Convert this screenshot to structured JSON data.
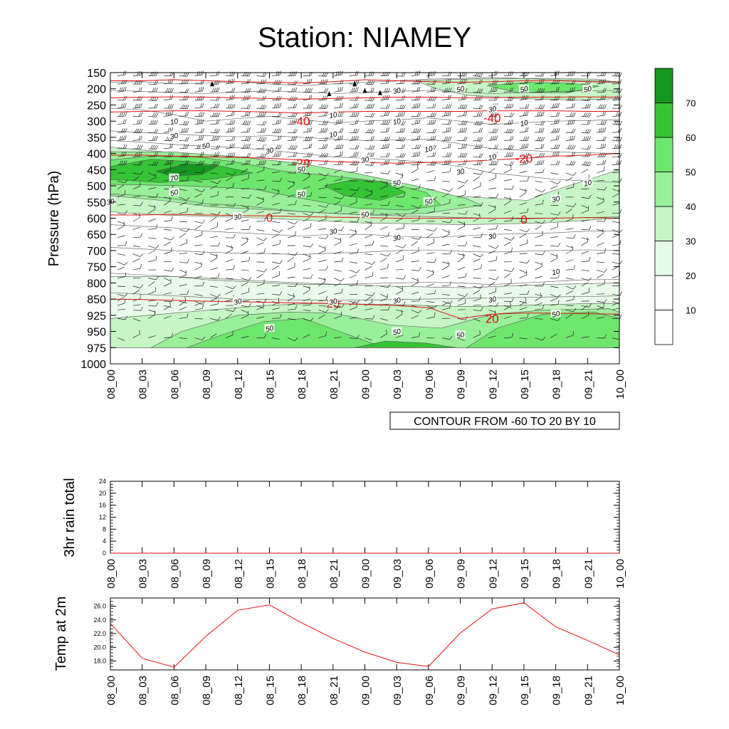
{
  "title": "Station: NIAMEY",
  "time_labels": [
    "08_00",
    "08_03",
    "08_06",
    "08_09",
    "08_12",
    "08_15",
    "08_18",
    "08_21",
    "09_00",
    "09_03",
    "09_06",
    "09_09",
    "09_12",
    "09_15",
    "09_18",
    "09_21",
    "10_00"
  ],
  "cross_section": {
    "ylabel": "Pressure (hPa)",
    "pressure_ticks": [
      "150",
      "200",
      "250",
      "300",
      "350",
      "400",
      "450",
      "500",
      "550",
      "600",
      "650",
      "700",
      "750",
      "800",
      "850",
      "925",
      "950",
      "975",
      "1000"
    ],
    "contour_info": "CONTOUR FROM -60 TO 20 BY 10",
    "legend_labels": [
      "10",
      "20",
      "30",
      "40",
      "50",
      "60",
      "70"
    ],
    "legend_colors": [
      "#ffffff",
      "#ffffff",
      "#e8fae8",
      "#c6f5c6",
      "#9aef9a",
      "#6ee66e",
      "#35c435",
      "#15961f"
    ],
    "temp_contours": [
      {
        "label": "-40",
        "pressure": [
          175,
          175,
          172,
          175,
          178,
          180,
          182,
          178,
          172,
          175,
          178,
          180,
          178,
          175,
          175,
          178,
          180
        ]
      },
      {
        "label": "-40",
        "pressure": [
          228,
          226,
          225,
          226,
          228,
          230,
          232,
          230,
          228,
          226,
          226,
          228,
          228,
          226,
          226,
          225,
          226
        ]
      },
      {
        "label": "-40",
        "pressure": [
          272,
          270,
          268,
          268,
          270,
          272,
          275,
          272,
          270,
          270,
          270,
          270,
          268,
          268,
          268,
          270,
          270
        ]
      },
      {
        "label": "-20",
        "pressure": [
          405,
          405,
          408,
          410,
          412,
          415,
          420,
          425,
          428,
          430,
          428,
          425,
          420,
          415,
          408,
          405,
          400
        ]
      },
      {
        "label": "0",
        "pressure": [
          590,
          590,
          588,
          590,
          592,
          593,
          595,
          597,
          598,
          600,
          600,
          600,
          600,
          600,
          600,
          598,
          600
        ]
      },
      {
        "label": "20",
        "pressure": [
          850,
          852,
          856,
          860,
          862,
          865,
          868,
          870,
          875,
          880,
          890,
          930,
          920,
          915,
          915,
          918,
          920
        ]
      }
    ],
    "temp_labels": [
      {
        "text": "-40",
        "time": "08_18",
        "pressure": 300
      },
      {
        "text": "-40",
        "time": "09_12",
        "pressure": 290
      },
      {
        "text": "-20",
        "time": "08_18",
        "pressure": 430
      },
      {
        "text": "-20",
        "time": "09_15",
        "pressure": 415
      },
      {
        "text": "0",
        "time": "08_15",
        "pressure": 598
      },
      {
        "text": "0",
        "time": "09_15",
        "pressure": 603
      },
      {
        "text": "20",
        "time": "08_21",
        "pressure": 870
      },
      {
        "text": "20",
        "time": "09_12",
        "pressure": 930
      }
    ],
    "green_regions": [
      {
        "level": "30",
        "poly": [
          [
            0,
            380
          ],
          [
            14,
            400
          ],
          [
            24,
            420
          ],
          [
            37,
            440
          ],
          [
            48,
            470
          ],
          [
            55,
            500
          ],
          [
            66,
            530
          ],
          [
            82,
            545
          ],
          [
            86,
            520
          ],
          [
            96,
            470
          ],
          [
            100,
            450
          ],
          [
            100,
            600
          ],
          [
            85,
            615
          ],
          [
            70,
            620
          ],
          [
            50,
            615
          ],
          [
            30,
            600
          ],
          [
            10,
            590
          ],
          [
            0,
            580
          ]
        ]
      },
      {
        "level": "40",
        "poly": [
          [
            0,
            395
          ],
          [
            12,
            395
          ],
          [
            25,
            410
          ],
          [
            37,
            430
          ],
          [
            48,
            460
          ],
          [
            60,
            500
          ],
          [
            70,
            540
          ],
          [
            73,
            560
          ],
          [
            62,
            585
          ],
          [
            50,
            590
          ],
          [
            38,
            580
          ],
          [
            20,
            565
          ],
          [
            10,
            545
          ],
          [
            0,
            530
          ]
        ]
      },
      {
        "level": "50",
        "poly": [
          [
            0,
            420
          ],
          [
            8,
            408
          ],
          [
            18,
            412
          ],
          [
            26,
            430
          ],
          [
            34,
            455
          ],
          [
            44,
            470
          ],
          [
            54,
            488
          ],
          [
            62,
            520
          ],
          [
            65,
            560
          ],
          [
            58,
            575
          ],
          [
            48,
            568
          ],
          [
            38,
            540
          ],
          [
            28,
            510
          ],
          [
            15,
            500
          ],
          [
            0,
            495
          ]
        ]
      },
      {
        "level": "60",
        "poly": [
          [
            0,
            440
          ],
          [
            8,
            418
          ],
          [
            16,
            425
          ],
          [
            22,
            440
          ],
          [
            28,
            460
          ],
          [
            20,
            480
          ],
          [
            10,
            490
          ],
          [
            0,
            480
          ]
        ]
      },
      {
        "level": "60",
        "poly": [
          [
            42,
            500
          ],
          [
            48,
            480
          ],
          [
            54,
            490
          ],
          [
            58,
            520
          ],
          [
            53,
            545
          ],
          [
            46,
            530
          ]
        ]
      },
      {
        "level": "70",
        "poly": [
          [
            9,
            455
          ],
          [
            15,
            432
          ],
          [
            21,
            440
          ],
          [
            18,
            465
          ],
          [
            12,
            470
          ]
        ]
      },
      {
        "level": "30",
        "poly": [
          [
            60,
            175
          ],
          [
            70,
            170
          ],
          [
            82,
            168
          ],
          [
            95,
            170
          ],
          [
            100,
            180
          ],
          [
            100,
            230
          ],
          [
            92,
            235
          ],
          [
            80,
            230
          ],
          [
            70,
            220
          ],
          [
            64,
            200
          ]
        ]
      },
      {
        "level": "50",
        "poly": [
          [
            74,
            190
          ],
          [
            82,
            180
          ],
          [
            90,
            182
          ],
          [
            96,
            192
          ],
          [
            90,
            212
          ],
          [
            80,
            212
          ]
        ]
      },
      {
        "level": "20",
        "poly": [
          [
            0,
            780
          ],
          [
            12,
            780
          ],
          [
            25,
            790
          ],
          [
            37,
            800
          ],
          [
            55,
            810
          ],
          [
            70,
            815
          ],
          [
            85,
            805
          ],
          [
            100,
            800
          ],
          [
            100,
            975
          ],
          [
            0,
            975
          ]
        ]
      },
      {
        "level": "30",
        "poly": [
          [
            0,
            930
          ],
          [
            10,
            920
          ],
          [
            20,
            900
          ],
          [
            30,
            880
          ],
          [
            40,
            870
          ],
          [
            55,
            875
          ],
          [
            70,
            885
          ],
          [
            80,
            880
          ],
          [
            95,
            870
          ],
          [
            100,
            870
          ],
          [
            100,
            975
          ],
          [
            0,
            975
          ]
        ]
      },
      {
        "level": "40",
        "poly": [
          [
            8,
            975
          ],
          [
            14,
            950
          ],
          [
            25,
            925
          ],
          [
            35,
            910
          ],
          [
            44,
            915
          ],
          [
            55,
            940
          ],
          [
            65,
            945
          ],
          [
            75,
            920
          ],
          [
            86,
            900
          ],
          [
            98,
            895
          ],
          [
            100,
            910
          ],
          [
            100,
            975
          ]
        ]
      },
      {
        "level": "50",
        "poly": [
          [
            15,
            975
          ],
          [
            22,
            955
          ],
          [
            30,
            935
          ],
          [
            38,
            930
          ],
          [
            45,
            950
          ],
          [
            52,
            970
          ],
          [
            60,
            975
          ]
        ]
      },
      {
        "level": "50",
        "poly": [
          [
            70,
            975
          ],
          [
            76,
            945
          ],
          [
            85,
            920
          ],
          [
            95,
            910
          ],
          [
            100,
            930
          ],
          [
            100,
            975
          ]
        ]
      },
      {
        "level": "60",
        "poly": [
          [
            48,
            975
          ],
          [
            54,
            965
          ],
          [
            62,
            968
          ],
          [
            68,
            975
          ]
        ]
      }
    ],
    "contour_value_labels": [
      {
        "text": "10",
        "time": "08_06",
        "pressure": 300
      },
      {
        "text": "10",
        "time": "08_21",
        "pressure": 280
      },
      {
        "text": "10",
        "time": "08_21",
        "pressure": 340
      },
      {
        "text": "10",
        "time": "09_03",
        "pressure": 300
      },
      {
        "text": "10",
        "time": "09_06",
        "pressure": 385
      },
      {
        "text": "10",
        "time": "09_15",
        "pressure": 305
      },
      {
        "text": "10",
        "time": "09_21",
        "pressure": 490
      },
      {
        "text": "10",
        "time": "09_18",
        "pressure": 765
      },
      {
        "text": "10",
        "time": "09_12",
        "pressure": 410
      },
      {
        "text": "30",
        "time": "08_06",
        "pressure": 345
      },
      {
        "text": "30",
        "time": "08_15",
        "pressure": 390
      },
      {
        "text": "30",
        "time": "09_00",
        "pressure": 418
      },
      {
        "text": "30",
        "time": "09_09",
        "pressure": 455
      },
      {
        "text": "30",
        "time": "09_18",
        "pressure": 540
      },
      {
        "text": "30",
        "time": "08_00",
        "pressure": 548
      },
      {
        "text": "30",
        "time": "08_12",
        "pressure": 595
      },
      {
        "text": "30",
        "time": "08_21",
        "pressure": 640
      },
      {
        "text": "30",
        "time": "09_03",
        "pressure": 660
      },
      {
        "text": "30",
        "time": "09_12",
        "pressure": 655
      },
      {
        "text": "30",
        "time": "08_12",
        "pressure": 860
      },
      {
        "text": "30",
        "time": "08_21",
        "pressure": 860
      },
      {
        "text": "30",
        "time": "09_03",
        "pressure": 855
      },
      {
        "text": "30",
        "time": "09_12",
        "pressure": 850
      },
      {
        "text": "30",
        "time": "09_03",
        "pressure": 205
      },
      {
        "text": "30",
        "time": "09_12",
        "pressure": 262
      },
      {
        "text": "50",
        "time": "08_09",
        "pressure": 375
      },
      {
        "text": "50",
        "time": "08_18",
        "pressure": 448
      },
      {
        "text": "50",
        "time": "09_03",
        "pressure": 490
      },
      {
        "text": "50",
        "time": "08_06",
        "pressure": 520
      },
      {
        "text": "50",
        "time": "08_18",
        "pressure": 525
      },
      {
        "text": "50",
        "time": "09_00",
        "pressure": 588
      },
      {
        "text": "50",
        "time": "09_06",
        "pressure": 548
      },
      {
        "text": "50",
        "time": "09_09",
        "pressure": 200
      },
      {
        "text": "50",
        "time": "09_15",
        "pressure": 200
      },
      {
        "text": "50",
        "time": "09_21",
        "pressure": 200
      },
      {
        "text": "50",
        "time": "08_15",
        "pressure": 945
      },
      {
        "text": "50",
        "time": "09_03",
        "pressure": 950
      },
      {
        "text": "50",
        "time": "09_09",
        "pressure": 955
      },
      {
        "text": "50",
        "time": "09_18",
        "pressure": 918
      },
      {
        "text": "70",
        "time": "08_06",
        "pressure": 475
      }
    ]
  },
  "rain_panel": {
    "ylabel": "3hr rain total",
    "ticks": [
      "0",
      "4",
      "8",
      "12",
      "16",
      "20",
      "24"
    ],
    "ylim": [
      0,
      24
    ]
  },
  "temp_panel": {
    "ylabel": "Temp at 2m",
    "ticks": [
      "18.0",
      "20.0",
      "22.0",
      "24.0",
      "26.0"
    ],
    "ylim": [
      16.7,
      27.2
    ]
  },
  "chart_data": [
    {
      "type": "line",
      "title": "",
      "ylabel": "3hr rain total",
      "x": [
        "08_00",
        "08_03",
        "08_06",
        "08_09",
        "08_12",
        "08_15",
        "08_18",
        "08_21",
        "09_00",
        "09_03",
        "09_06",
        "09_09",
        "09_12",
        "09_15",
        "09_18",
        "09_21",
        "10_00"
      ],
      "series": [
        {
          "values": [
            0,
            0,
            0,
            0,
            0,
            0,
            0,
            0,
            0,
            0,
            0,
            0,
            0,
            0,
            0,
            0,
            0
          ]
        }
      ],
      "ylim": [
        0,
        24
      ]
    },
    {
      "type": "line",
      "title": "",
      "ylabel": "Temp at 2m",
      "x": [
        "08_00",
        "08_03",
        "08_06",
        "08_09",
        "08_12",
        "08_15",
        "08_18",
        "08_21",
        "09_00",
        "09_03",
        "09_06",
        "09_09",
        "09_12",
        "09_15",
        "09_18",
        "09_21",
        "10_00"
      ],
      "series": [
        {
          "color": "#e01010",
          "values": [
            23.5,
            18.4,
            17.1,
            21.6,
            25.4,
            26.2,
            23.6,
            21.3,
            19.3,
            17.8,
            17.2,
            22.1,
            25.6,
            26.5,
            23.0,
            21.0,
            18.9
          ]
        }
      ],
      "ylim": [
        16.7,
        27.2
      ]
    }
  ]
}
